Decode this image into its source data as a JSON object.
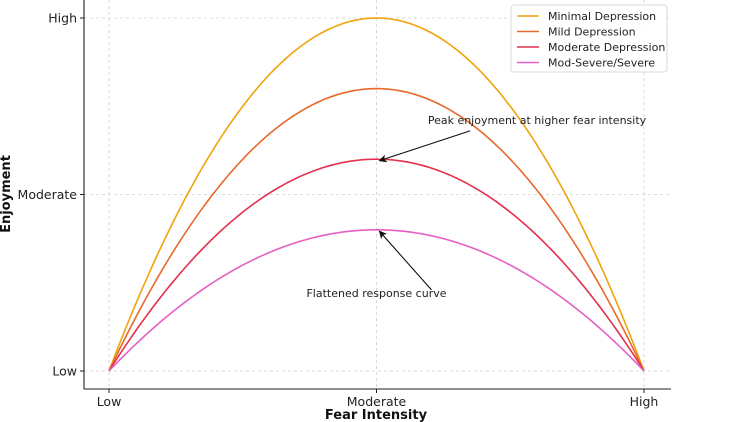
{
  "chart_data": {
    "type": "line",
    "title": "",
    "xlabel": "Fear Intensity",
    "ylabel": "Enjoyment",
    "x_categories": [
      "Low",
      "Moderate",
      "High"
    ],
    "y_categories": [
      "Low",
      "Moderate",
      "High"
    ],
    "xlim": [
      0,
      2
    ],
    "ylim": [
      0,
      2
    ],
    "grid": true,
    "legend_position": "top-right",
    "series": [
      {
        "name": "Minimal Depression",
        "color": "#f0a30a",
        "peak": 2.0
      },
      {
        "name": "Mild Depression",
        "color": "#e8692a",
        "peak": 1.6
      },
      {
        "name": "Moderate Depression",
        "color": "#e3304d",
        "peak": 1.2
      },
      {
        "name": "Mod-Severe/Severe",
        "color": "#e55fc5",
        "peak": 0.8
      }
    ],
    "curve_shape": "y = peak * (1 - (x - 1)^2)",
    "annotations": [
      {
        "text": "Peak enjoyment at higher fear intensity",
        "target_x": 1.0,
        "target_y": 1.2,
        "text_x": 1.6,
        "text_y": 1.4
      },
      {
        "text": "Flattened response curve",
        "target_x": 1.0,
        "target_y": 0.8,
        "text_x": 1.0,
        "text_y": 0.42
      }
    ]
  }
}
